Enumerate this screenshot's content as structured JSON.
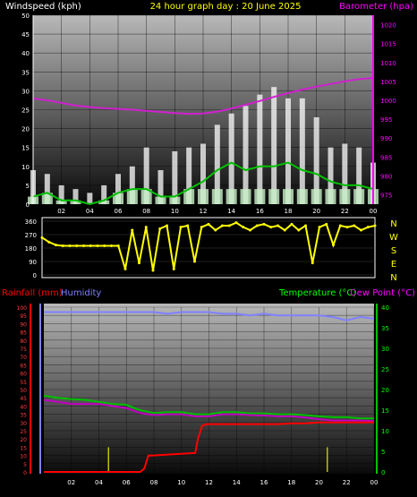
{
  "header": {
    "left_title": "Windspeed (kph)",
    "center_title": "24 hour graph day : 20 June 2025",
    "right_title": "Barometer (hpa)"
  },
  "colors": {
    "wind_avg": "#00c000",
    "wind_gust": "#ffffff",
    "wind_calm": "#c8f0c8",
    "barometer": "#d020d0",
    "direction": "#ffff00",
    "rain": "#ff0000",
    "humidity": "#8080ff",
    "temperature": "#00c000",
    "dewpoint": "#c000c0",
    "rain_rate": "#c0c000",
    "label_left_top": "#ffffff",
    "label_center": "#ffff00",
    "label_right_top": "#ff00ff",
    "label_rain": "#ff0000",
    "label_humidity": "#8080ff",
    "label_temp": "#00ff00",
    "label_dew": "#ff00ff"
  },
  "chart_data": [
    {
      "type": "line",
      "name": "wind-barometer",
      "x_ticks": [
        "02",
        "04",
        "06",
        "08",
        "10",
        "12",
        "14",
        "16",
        "18",
        "20",
        "22",
        "00"
      ],
      "y_left_ticks": [
        "0",
        "5",
        "10",
        "15",
        "20",
        "25",
        "30",
        "35",
        "40",
        "45",
        "50"
      ],
      "y_left_range": [
        0,
        50
      ],
      "y_right_ticks": [
        "975",
        "980",
        "985",
        "990",
        "995",
        "1000",
        "1005",
        "1010",
        "1015",
        "1020"
      ],
      "y_right_range": [
        972.5,
        1022.5
      ],
      "x_range": [
        0,
        24
      ],
      "barometer": {
        "x": [
          0,
          1,
          2,
          3,
          4,
          5,
          6,
          7,
          8,
          9,
          10,
          11,
          12,
          13,
          14,
          15,
          16,
          17,
          18,
          19,
          20,
          21,
          22,
          23,
          24
        ],
        "values": [
          1000.5,
          1000.0,
          999.3,
          998.6,
          998.2,
          997.9,
          997.7,
          997.5,
          997.2,
          996.9,
          996.6,
          996.4,
          996.5,
          997.0,
          997.8,
          998.8,
          999.8,
          1000.9,
          1001.9,
          1002.8,
          1003.6,
          1004.3,
          1005.0,
          1005.6,
          1005.9
        ]
      },
      "wind_avg": {
        "x": [
          0,
          1,
          2,
          3,
          4,
          5,
          6,
          7,
          8,
          9,
          10,
          11,
          12,
          13,
          14,
          15,
          16,
          17,
          18,
          19,
          20,
          21,
          22,
          23,
          24
        ],
        "values": [
          2,
          3,
          1,
          1,
          0,
          1,
          3,
          4,
          4,
          2,
          2,
          4,
          6,
          9,
          11,
          9,
          10,
          10,
          11,
          9,
          8,
          6,
          5,
          5,
          4
        ]
      },
      "wind_gust": {
        "x": [
          0,
          1,
          2,
          3,
          4,
          5,
          6,
          7,
          8,
          9,
          10,
          11,
          12,
          13,
          14,
          15,
          16,
          17,
          18,
          19,
          20,
          21,
          22,
          23,
          24
        ],
        "values": [
          9,
          8,
          5,
          4,
          3,
          5,
          8,
          10,
          15,
          9,
          14,
          15,
          16,
          21,
          24,
          26,
          29,
          31,
          28,
          28,
          23,
          15,
          16,
          15,
          11
        ]
      }
    },
    {
      "type": "scatter",
      "name": "wind-direction",
      "x_range": [
        0,
        24
      ],
      "y_ticks": [
        "360",
        "270",
        "180",
        "90",
        "0"
      ],
      "y_range": [
        0,
        360
      ],
      "right_labels": [
        "N",
        "W",
        "S",
        "E",
        "N"
      ],
      "x": [
        0,
        0.5,
        1,
        1.5,
        2,
        2.5,
        3,
        3.5,
        4,
        4.5,
        5,
        5.5,
        6,
        6.5,
        7,
        7.5,
        8,
        8.5,
        9,
        9.5,
        10,
        10.5,
        11,
        11.5,
        12,
        12.5,
        13,
        13.5,
        14,
        14.5,
        15,
        15.5,
        16,
        16.5,
        17,
        17.5,
        18,
        18.5,
        19,
        19.5,
        20,
        20.5,
        21,
        21.5,
        22,
        22.5,
        23,
        23.5,
        24
      ],
      "values": [
        250,
        220,
        200,
        195,
        195,
        195,
        195,
        195,
        195,
        195,
        195,
        195,
        40,
        300,
        80,
        320,
        30,
        310,
        330,
        40,
        320,
        330,
        90,
        320,
        340,
        300,
        330,
        330,
        350,
        320,
        300,
        330,
        340,
        320,
        330,
        300,
        340,
        300,
        330,
        80,
        320,
        340,
        200,
        330,
        320,
        330,
        300,
        320,
        330
      ]
    },
    {
      "type": "line",
      "name": "rain-humidity-temperature",
      "x_ticks": [
        "02",
        "04",
        "06",
        "08",
        "10",
        "12",
        "14",
        "16",
        "18",
        "20",
        "22",
        "00"
      ],
      "x_range": [
        0,
        24
      ],
      "y_left_ticks": [
        "0",
        "5",
        "10",
        "15",
        "20",
        "25",
        "30",
        "35",
        "40",
        "45",
        "50",
        "55",
        "60",
        "65",
        "70",
        "75",
        "80",
        "85",
        "90",
        "95",
        "100"
      ],
      "y_left_range": [
        0,
        100
      ],
      "y_right_ticks": [
        "0",
        "5",
        "10",
        "15",
        "20",
        "25",
        "30",
        "35",
        "40"
      ],
      "y_right_range": [
        0,
        40
      ],
      "humidity": {
        "x": [
          0,
          1,
          2,
          3,
          4,
          5,
          6,
          7,
          8,
          9,
          10,
          11,
          12,
          13,
          14,
          15,
          16,
          17,
          18,
          19,
          20,
          21,
          22,
          23,
          24
        ],
        "values": [
          97,
          97,
          97,
          97,
          97,
          97,
          97,
          97,
          97,
          96,
          97,
          97,
          97,
          96,
          96,
          95,
          96,
          95,
          95,
          95,
          95,
          94,
          92,
          94,
          93
        ]
      },
      "temperature": {
        "x": [
          0,
          1,
          2,
          3,
          4,
          5,
          6,
          7,
          8,
          9,
          10,
          11,
          12,
          13,
          14,
          15,
          16,
          17,
          18,
          19,
          20,
          21,
          22,
          23,
          24
        ],
        "values": [
          18.5,
          18,
          17.7,
          17.5,
          17,
          16.5,
          16.3,
          15,
          14.3,
          14.5,
          14.5,
          14,
          14,
          14.5,
          14.5,
          14.2,
          14.2,
          14,
          14,
          13.8,
          13.5,
          13.3,
          13.3,
          13,
          13
        ]
      },
      "dewpoint": {
        "x": [
          0,
          1,
          2,
          3,
          4,
          5,
          6,
          7,
          8,
          9,
          10,
          11,
          12,
          13,
          14,
          15,
          16,
          17,
          18,
          19,
          20,
          21,
          22,
          23,
          24
        ],
        "values": [
          17.5,
          17,
          16.5,
          16.5,
          16.5,
          16,
          15.5,
          14.3,
          13.8,
          14,
          14,
          13.5,
          13.5,
          14,
          14,
          13.8,
          13.7,
          13.5,
          13.5,
          13.2,
          12.8,
          12.5,
          12.5,
          12.5,
          12.3
        ]
      },
      "rainfall": {
        "x": [
          0,
          1,
          2,
          3,
          4,
          5,
          6,
          7,
          7.3,
          7.6,
          8,
          9,
          10,
          11,
          11.2,
          11.5,
          11.8,
          12,
          13,
          14,
          15,
          16,
          17,
          18,
          19,
          20,
          21,
          22,
          23,
          24
        ],
        "values": [
          0,
          0,
          0,
          0,
          0,
          0,
          0,
          0,
          2,
          10,
          10,
          10.5,
          11,
          11.5,
          20,
          28,
          29,
          29,
          29,
          29,
          29,
          29,
          29,
          29.5,
          29.5,
          30,
          30,
          30,
          30,
          30
        ]
      },
      "rain_rate_marks": {
        "x": [
          4.7,
          20.6
        ],
        "values": [
          3,
          3
        ]
      }
    }
  ],
  "bottom_header": {
    "rainfall_label": "Rainfall (mm)",
    "humidity_label": "Humidity",
    "temperature_label": "Temperature (°C)",
    "dewpoint_label": "Dew Point (°C)"
  }
}
